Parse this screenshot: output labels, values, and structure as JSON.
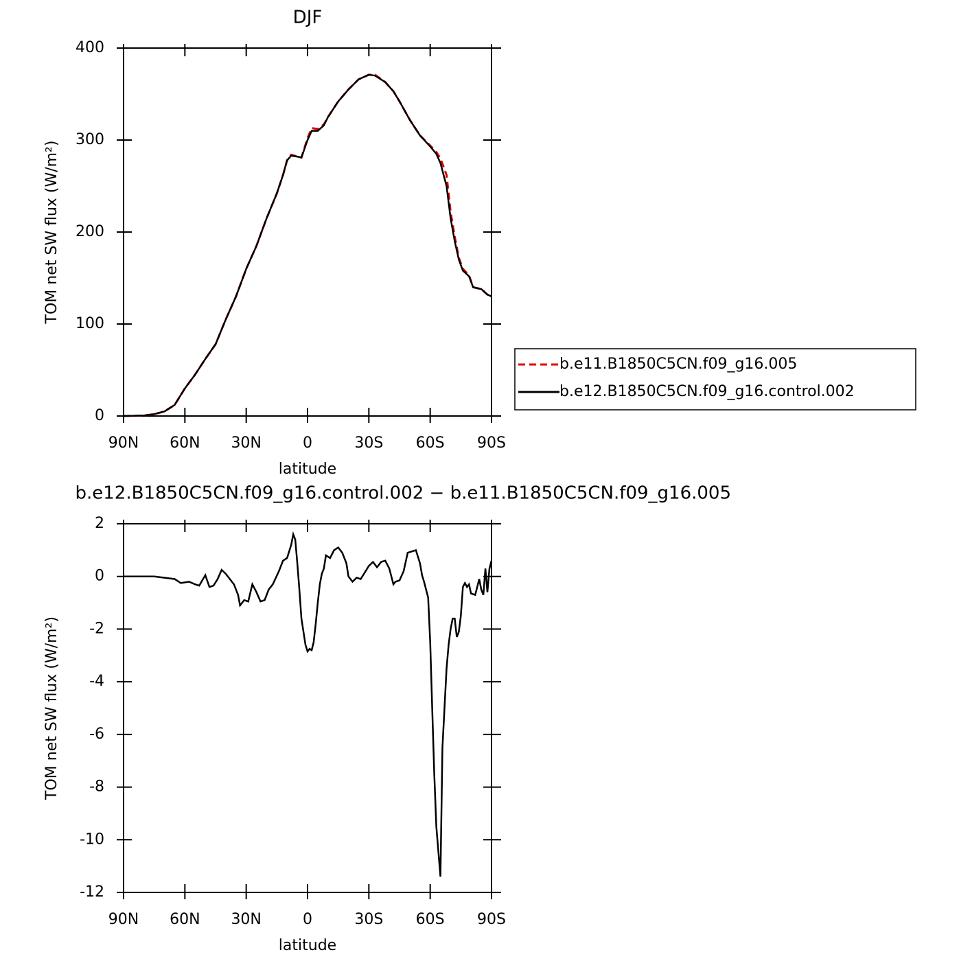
{
  "chart_data": [
    {
      "type": "line",
      "title": "DJF",
      "xlabel": "latitude",
      "ylabel": "TOM net SW flux (W/m²)",
      "x": [
        90,
        80,
        75,
        70,
        65,
        60,
        55,
        50,
        45,
        40,
        35,
        30,
        25,
        20,
        15,
        12,
        10,
        8,
        5,
        3,
        0,
        -2,
        -5,
        -8,
        -10,
        -15,
        -20,
        -25,
        -30,
        -33,
        -38,
        -42,
        -45,
        -50,
        -55,
        -60,
        -63,
        -65,
        -68,
        -70,
        -72,
        -74,
        -76,
        -79,
        -81,
        -85,
        -88,
        -90
      ],
      "series": [
        {
          "name": "b.e11.B1850C5CN.f09_g16.005",
          "color": "#e00000",
          "dashed": true,
          "values": [
            0,
            0.5,
            2,
            5,
            12,
            30,
            45,
            62,
            78,
            105,
            130,
            160,
            185,
            215,
            242,
            262,
            278,
            284,
            282,
            281,
            302,
            313,
            312,
            317,
            325,
            342,
            355,
            366,
            371,
            371,
            363,
            353,
            342,
            322,
            305,
            294,
            287,
            280,
            262,
            222,
            195,
            172,
            160,
            153,
            140,
            138,
            132,
            130
          ]
        },
        {
          "name": "b.e12.B1850C5CN.f09_g16.control.002",
          "color": "#000000",
          "dashed": false,
          "values": [
            0,
            0.5,
            2,
            5,
            12,
            30,
            45,
            62,
            78,
            105,
            130,
            160,
            185,
            215,
            242,
            262,
            278,
            283,
            282,
            281,
            300,
            310,
            310,
            316,
            325,
            342,
            355,
            366,
            371,
            370,
            363,
            353,
            342,
            322,
            305,
            293,
            285,
            275,
            250,
            215,
            190,
            170,
            158,
            152,
            140,
            138,
            132,
            130
          ]
        }
      ],
      "xlim": [
        90,
        -90
      ],
      "xticks": [
        {
          "value": 90,
          "label": "90N"
        },
        {
          "value": 60,
          "label": "60N"
        },
        {
          "value": 30,
          "label": "30N"
        },
        0,
        {
          "value": -30,
          "label": "30S"
        },
        {
          "value": -60,
          "label": "60S"
        },
        {
          "value": -90,
          "label": "90S"
        }
      ],
      "ylim": [
        0,
        400
      ],
      "yticks": [
        0,
        100,
        200,
        300,
        400
      ],
      "legend": "right"
    },
    {
      "type": "line",
      "title": "b.e12.B1850C5CN.f09_g16.control.002 − b.e11.B1850C5CN.f09_g16.005",
      "xlabel": "latitude",
      "ylabel": "TOM net SW flux (W/m²)",
      "x": [
        90,
        80,
        75,
        70,
        65,
        62,
        58,
        55,
        53,
        50,
        48,
        46,
        44,
        42,
        40,
        38,
        36,
        34,
        33,
        31,
        29,
        27,
        25,
        23,
        21,
        19,
        17,
        14,
        12,
        10,
        8,
        7,
        6,
        5,
        4,
        3,
        1,
        0,
        -1,
        -2,
        -3,
        -4,
        -5,
        -6,
        -7,
        -8,
        -9,
        -11,
        -13,
        -15,
        -17,
        -19,
        -20,
        -22,
        -24,
        -26,
        -28,
        -30,
        -32,
        -34,
        -36,
        -38,
        -40,
        -42,
        -43,
        -45,
        -47,
        -49,
        -51,
        -53,
        -55,
        -56,
        -57,
        -59,
        -60,
        -61,
        -62,
        -63,
        -65,
        -66,
        -67,
        -68,
        -69,
        -70,
        -71,
        -72,
        -73,
        -74,
        -75,
        -76,
        -77,
        -78,
        -79,
        -80,
        -82,
        -83,
        -84,
        -85,
        -86,
        -87,
        -88,
        -89,
        -90
      ],
      "color": "#000000",
      "values": [
        0,
        0,
        0,
        -0.05,
        -0.1,
        -0.25,
        -0.2,
        -0.3,
        -0.35,
        0.05,
        -0.4,
        -0.35,
        -0.1,
        0.25,
        0.1,
        -0.1,
        -0.3,
        -0.7,
        -1.1,
        -0.9,
        -0.95,
        -0.3,
        -0.6,
        -0.95,
        -0.9,
        -0.5,
        -0.3,
        0.2,
        0.6,
        0.7,
        1.2,
        1.6,
        1.4,
        0.5,
        -0.5,
        -1.6,
        -2.6,
        -2.85,
        -2.75,
        -2.8,
        -2.5,
        -1.8,
        -1.0,
        -0.3,
        0.1,
        0.3,
        0.8,
        0.7,
        1.0,
        1.1,
        0.9,
        0.5,
        0.0,
        -0.2,
        -0.05,
        -0.1,
        0.15,
        0.4,
        0.55,
        0.35,
        0.55,
        0.6,
        0.3,
        -0.3,
        -0.2,
        -0.15,
        0.2,
        0.9,
        0.95,
        1.0,
        0.5,
        0.05,
        -0.2,
        -0.8,
        -2.5,
        -5,
        -7.5,
        -9.5,
        -11.4,
        -6.5,
        -5,
        -3.5,
        -2.6,
        -2.0,
        -1.6,
        -1.6,
        -2.3,
        -2.1,
        -1.5,
        -0.4,
        -0.25,
        -0.4,
        -0.3,
        -0.65,
        -0.7,
        -0.4,
        -0.1,
        -0.5,
        -0.7,
        0.3,
        -0.6,
        0.3,
        0.6
      ],
      "xlim": [
        90,
        -90
      ],
      "xticks": [
        {
          "value": 90,
          "label": "90N"
        },
        {
          "value": 60,
          "label": "60N"
        },
        {
          "value": 30,
          "label": "30N"
        },
        0,
        {
          "value": -30,
          "label": "30S"
        },
        {
          "value": -60,
          "label": "60S"
        },
        {
          "value": -90,
          "label": "90S"
        }
      ],
      "ylim": [
        -12,
        2
      ],
      "yticks": [
        -12,
        -10,
        -8,
        -6,
        -4,
        -2,
        0,
        2
      ]
    }
  ]
}
